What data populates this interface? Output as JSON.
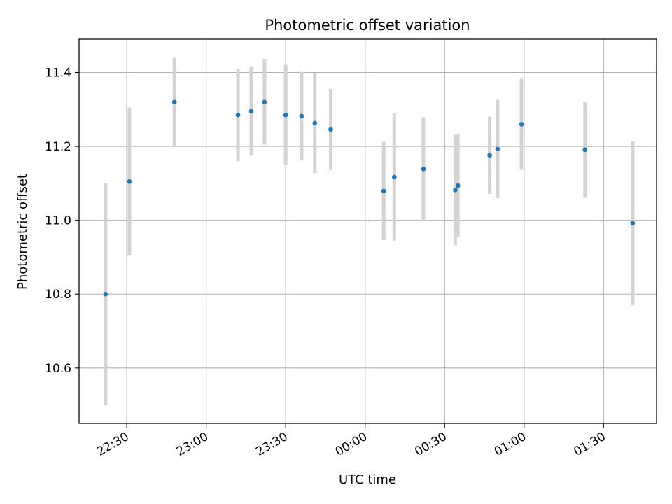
{
  "chart_data": {
    "type": "scatter",
    "title": "Photometric offset variation",
    "xlabel": "UTC time",
    "ylabel": "Photometric offset",
    "grid": true,
    "x_axis": "time",
    "x_ticks": [
      "22:30",
      "23:00",
      "23:30",
      "00:00",
      "00:30",
      "01:00",
      "01:30"
    ],
    "y_ticks": [
      "10.6",
      "10.8",
      "11.0",
      "11.2",
      "11.4"
    ],
    "ylim": [
      10.45,
      11.49
    ],
    "xlim": [
      "22:12",
      "01:50"
    ],
    "colors": {
      "points": "#1f77b4",
      "error_bars": "#d3d3d3",
      "grid": "#b0b0b0"
    },
    "series": [
      {
        "points": [
          {
            "x": "22:22",
            "y": 10.8,
            "yerr": 0.3
          },
          {
            "x": "22:31",
            "y": 11.105,
            "yerr": 0.2
          },
          {
            "x": "22:48",
            "y": 11.32,
            "yerr": 0.12
          },
          {
            "x": "23:12",
            "y": 11.285,
            "yerr": 0.125
          },
          {
            "x": "23:17",
            "y": 11.295,
            "yerr": 0.12
          },
          {
            "x": "23:22",
            "y": 11.32,
            "yerr": 0.115
          },
          {
            "x": "23:30",
            "y": 11.285,
            "yerr": 0.135
          },
          {
            "x": "23:36",
            "y": 11.282,
            "yerr": 0.12
          },
          {
            "x": "23:41",
            "y": 11.263,
            "yerr": 0.135
          },
          {
            "x": "23:47",
            "y": 11.246,
            "yerr": 0.11
          },
          {
            "x": "00:07",
            "y": 11.079,
            "yerr": 0.133
          },
          {
            "x": "00:11",
            "y": 11.117,
            "yerr": 0.172
          },
          {
            "x": "00:22",
            "y": 11.139,
            "yerr": 0.14
          },
          {
            "x": "00:34",
            "y": 11.082,
            "yerr": 0.15
          },
          {
            "x": "00:35",
            "y": 11.094,
            "yerr": 0.14
          },
          {
            "x": "00:47",
            "y": 11.176,
            "yerr": 0.105
          },
          {
            "x": "00:50",
            "y": 11.193,
            "yerr": 0.133
          },
          {
            "x": "00:59",
            "y": 11.26,
            "yerr": 0.123
          },
          {
            "x": "01:23",
            "y": 11.191,
            "yerr": 0.13
          },
          {
            "x": "01:41",
            "y": 10.992,
            "yerr": 0.222
          }
        ]
      }
    ]
  }
}
